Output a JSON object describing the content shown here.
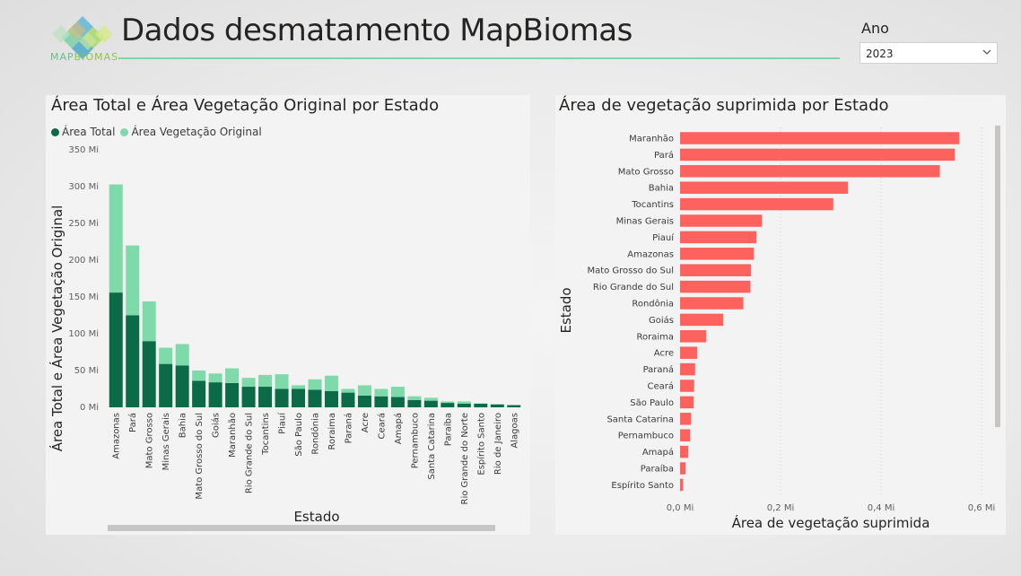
{
  "header": {
    "title": "Dados desmatamento MapBiomas",
    "logo_text_1": "MAP",
    "logo_text_2": "BIOMAS",
    "accent_color": "#7fd6a5"
  },
  "filter": {
    "label": "Ano",
    "selected": "2023",
    "icon": "chevron-down-icon"
  },
  "left_chart": {
    "title": "Área Total e Área Vegetação Original por Estado",
    "legend": [
      {
        "label": "Área Total",
        "color": "#0b6b48"
      },
      {
        "label": "Área Vegetação Original",
        "color": "#7fdaa9"
      }
    ]
  },
  "right_chart": {
    "title": "Área de vegetação suprimida por Estado"
  },
  "chart_data": [
    {
      "type": "bar",
      "stacked": true,
      "title": "Área Total e Área Vegetação Original por Estado",
      "xlabel": "Estado",
      "ylabel": "Área Total e Área Vegetação Original",
      "ylim": [
        0,
        350
      ],
      "yticks": [
        "0 Mi",
        "50 Mi",
        "100 Mi",
        "150 Mi",
        "200 Mi",
        "250 Mi",
        "300 Mi",
        "350 Mi"
      ],
      "categories": [
        "Amazonas",
        "Pará",
        "Mato Grosso",
        "Minas Gerais",
        "Bahia",
        "Mato Grosso do Sul",
        "Goiás",
        "Maranhão",
        "Rio Grande do Sul",
        "Tocantins",
        "Piauí",
        "São Paulo",
        "Rondônia",
        "Roraima",
        "Paraná",
        "Acre",
        "Ceará",
        "Amapá",
        "Pernambuco",
        "Santa Catarina",
        "Paraíba",
        "Rio Grande do Norte",
        "Espírito Santo",
        "Rio de Janeiro",
        "Alagoas"
      ],
      "series": [
        {
          "name": "Área Total",
          "color": "#0b6b48",
          "values": [
            156,
            125,
            90,
            59,
            57,
            36,
            34,
            33,
            28,
            28,
            25,
            25,
            24,
            22,
            20,
            16,
            15,
            14,
            10,
            9,
            6,
            5,
            5,
            4,
            3
          ]
        },
        {
          "name": "Área Vegetação Original",
          "color": "#7fdaa9",
          "values": [
            147,
            95,
            54,
            22,
            29,
            14,
            12,
            20,
            12,
            16,
            20,
            5,
            14,
            21,
            5,
            14,
            10,
            14,
            5,
            4,
            2,
            3,
            0,
            0,
            0
          ]
        }
      ]
    },
    {
      "type": "bar",
      "orientation": "horizontal",
      "title": "Área de vegetação suprimida por Estado",
      "xlabel": "Área de vegetação suprimida",
      "ylabel": "Estado",
      "xlim": [
        0,
        0.6
      ],
      "xticks": [
        "0,0 Mi",
        "0,2 Mi",
        "0,4 Mi",
        "0,6 Mi"
      ],
      "color": "#fd625e",
      "categories": [
        "Maranhão",
        "Pará",
        "Mato Grosso",
        "Bahia",
        "Tocantins",
        "Minas Gerais",
        "Piauí",
        "Amazonas",
        "Mato Grosso do Sul",
        "Rio Grande do Sul",
        "Rondônia",
        "Goiás",
        "Roraima",
        "Acre",
        "Paraná",
        "Ceará",
        "São Paulo",
        "Santa Catarina",
        "Pernambuco",
        "Amapá",
        "Paraíba",
        "Espírito Santo"
      ],
      "values": [
        0.556,
        0.547,
        0.517,
        0.334,
        0.305,
        0.163,
        0.152,
        0.147,
        0.141,
        0.14,
        0.126,
        0.086,
        0.052,
        0.034,
        0.03,
        0.028,
        0.027,
        0.022,
        0.02,
        0.016,
        0.011,
        0.006
      ]
    }
  ]
}
